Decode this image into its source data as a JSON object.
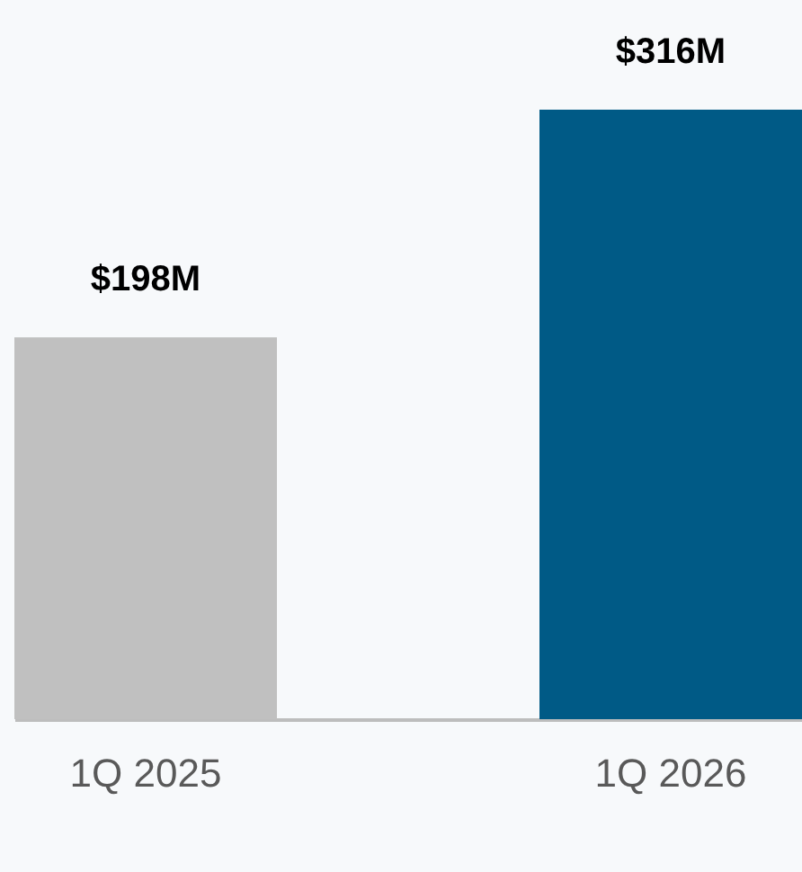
{
  "chart_data": {
    "type": "bar",
    "categories": [
      "1Q 2025",
      "1Q 2026"
    ],
    "values": [
      198,
      316
    ],
    "value_labels": [
      "$198M",
      "$316M"
    ],
    "colors": [
      "#c0c0c0",
      "#005a86"
    ]
  }
}
